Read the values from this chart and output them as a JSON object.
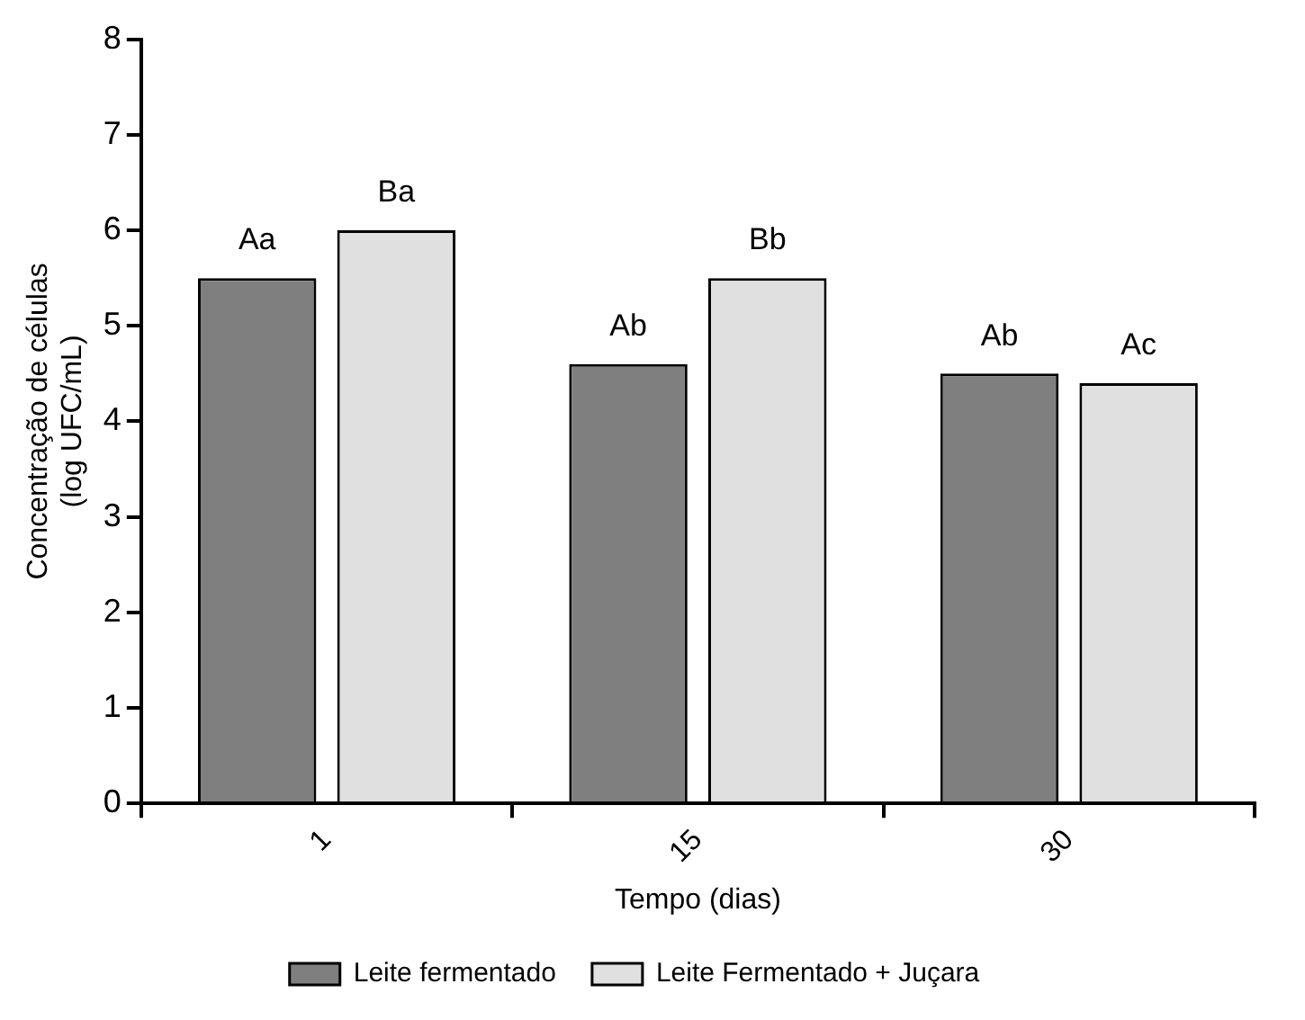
{
  "chart_data": {
    "type": "bar",
    "xlabel": "Tempo (dias)",
    "ylabel": "Concentração de células\n(log UFC/mL)",
    "categories": [
      "1",
      "15",
      "30"
    ],
    "series": [
      {
        "name": "Leite fermentado",
        "color": "#7f7f7f",
        "values": [
          5.5,
          4.6,
          4.5
        ]
      },
      {
        "name": "Leite Fermentado + Juçara",
        "color": "#e0e0e0",
        "values": [
          6.0,
          5.5,
          4.4
        ]
      }
    ],
    "ylim": [
      0,
      8
    ],
    "yticks": [
      0,
      1,
      2,
      3,
      4,
      5,
      6,
      7,
      8
    ],
    "grid": false,
    "legend": "bottom",
    "annotations": [
      "Aa",
      "Ba",
      "Ab",
      "Bb",
      "Ab",
      "Ac"
    ]
  }
}
